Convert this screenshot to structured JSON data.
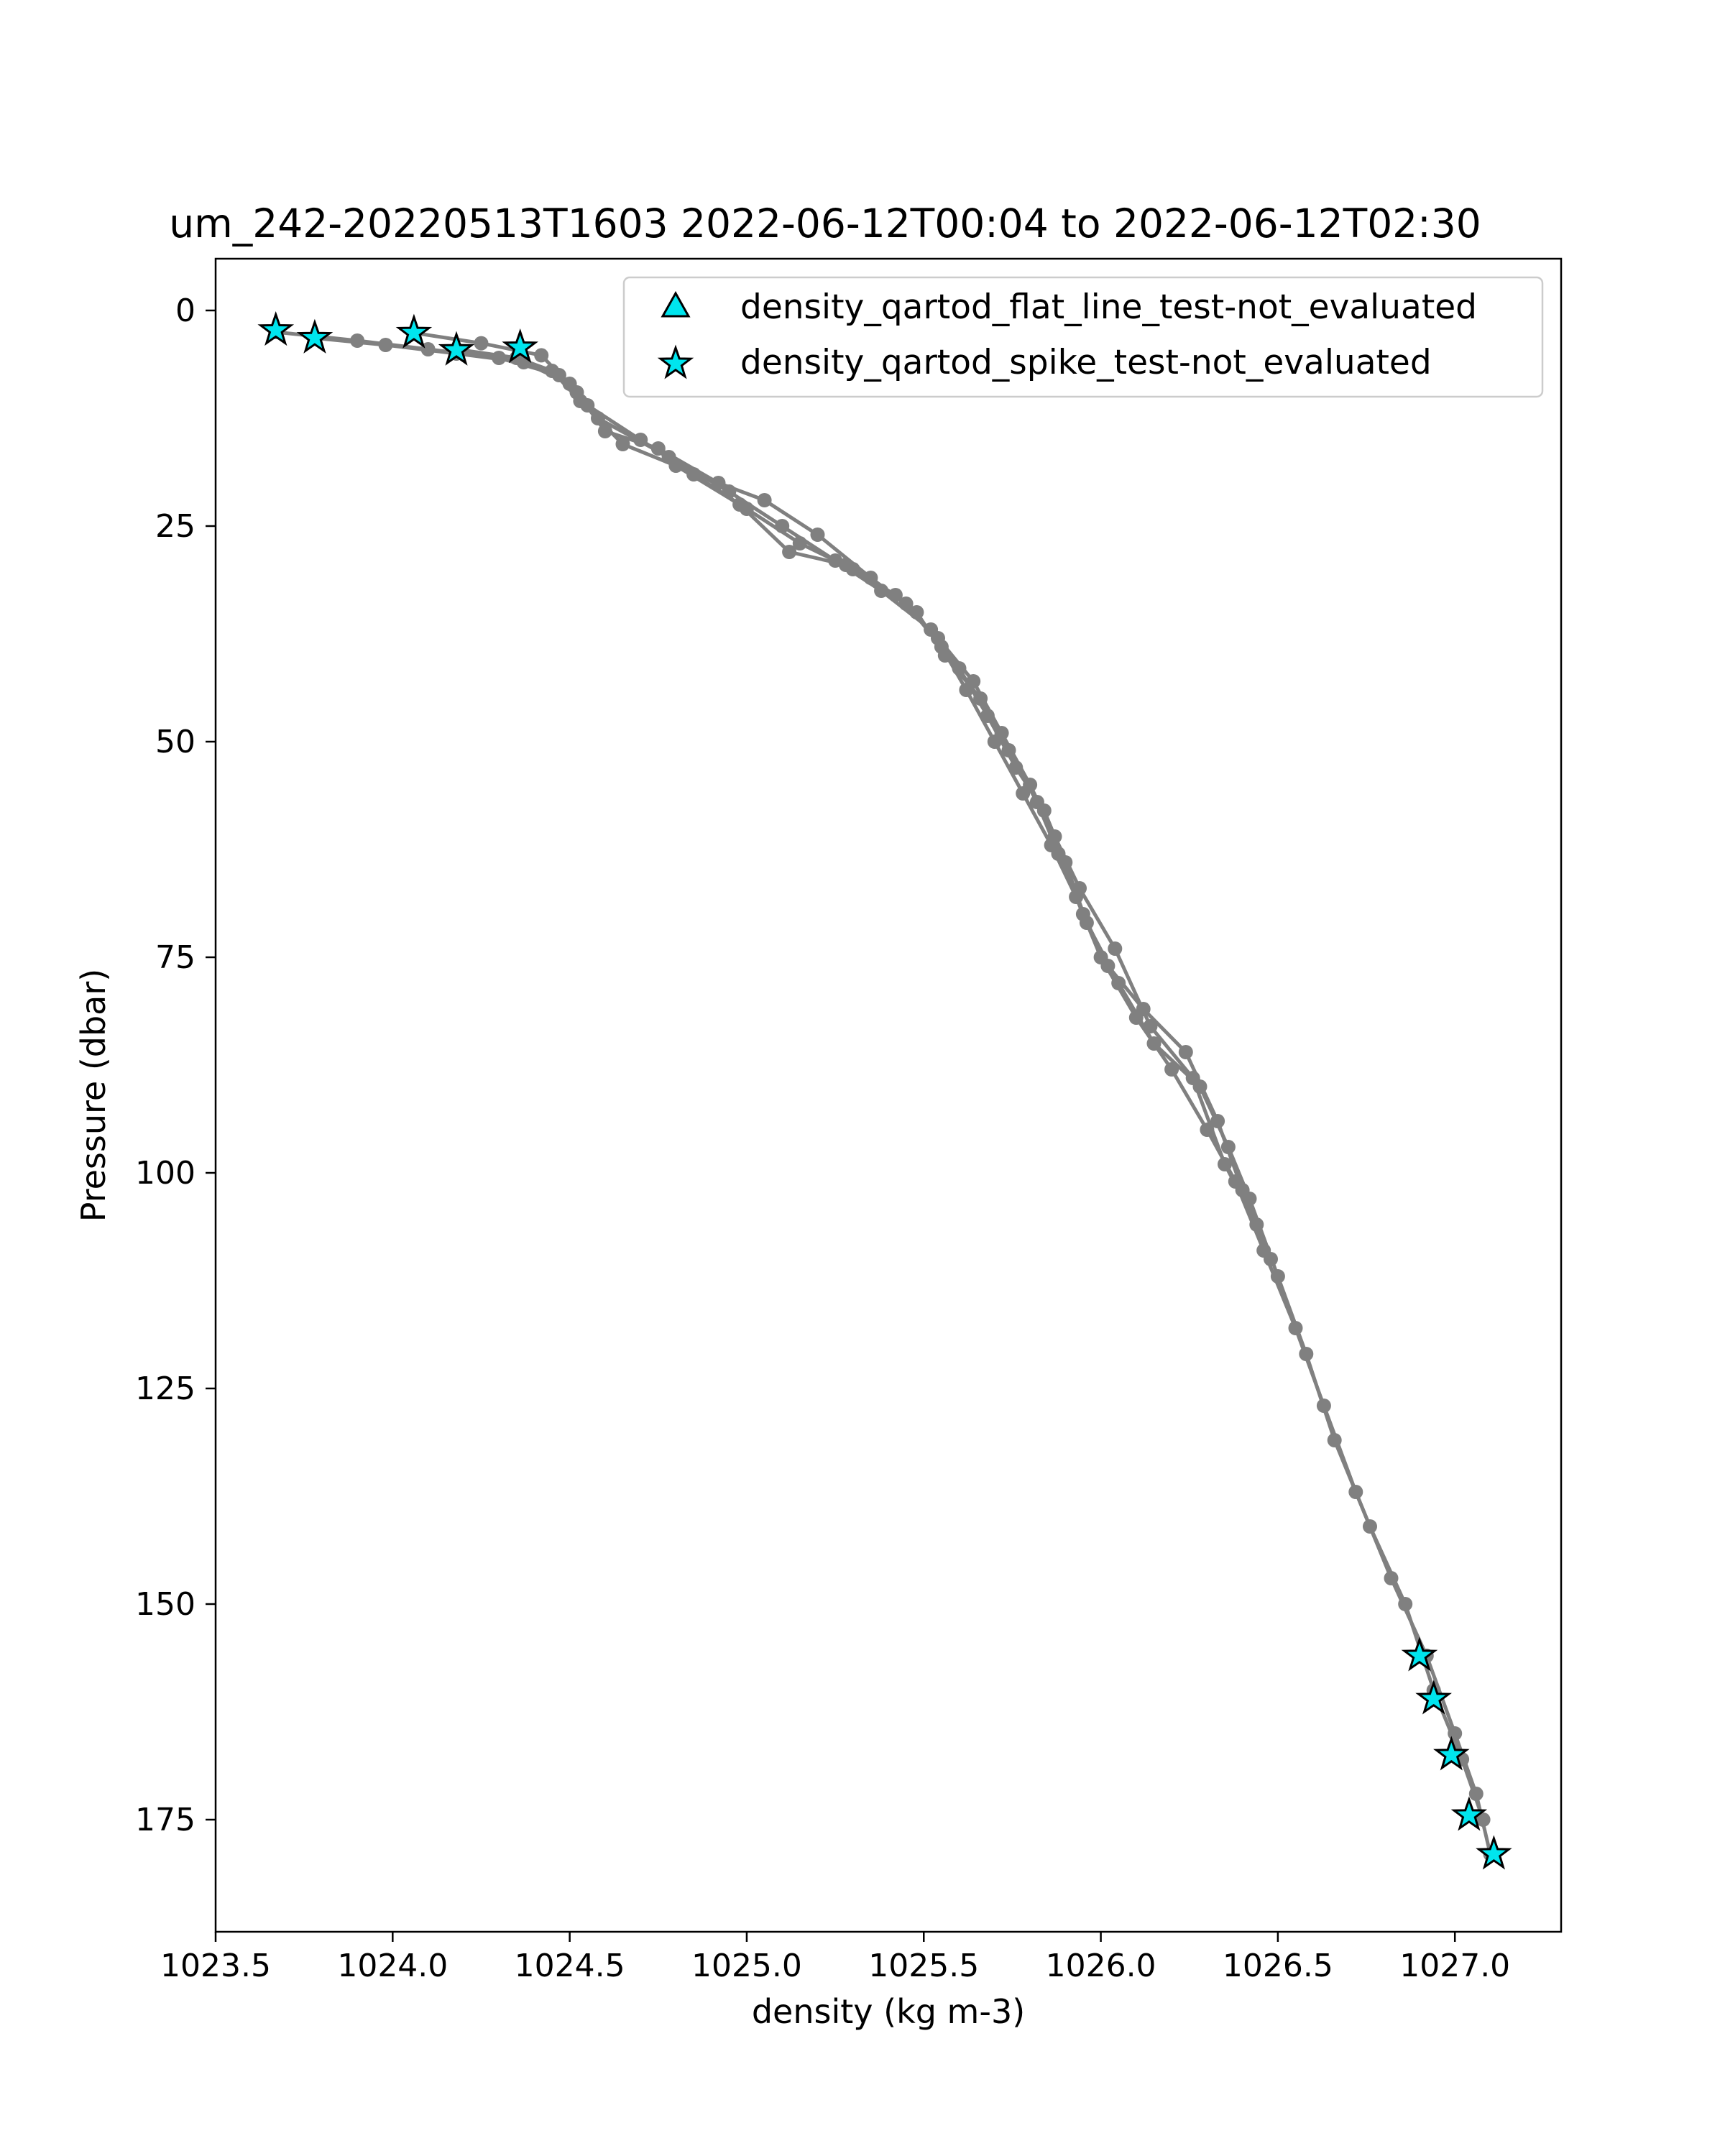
{
  "chart_data": {
    "type": "scatter",
    "title": "um_242-20220513T1603 2022-06-12T00:04 to 2022-06-12T02:30",
    "xlabel": "density (kg m-3)",
    "ylabel": "Pressure (dbar)",
    "xlim": [
      1023.5,
      1027.3
    ],
    "ylim": [
      188,
      -6
    ],
    "y_inverted": true,
    "x_ticks": [
      "1023.5",
      "1024.0",
      "1024.5",
      "1025.0",
      "1025.5",
      "1026.0",
      "1026.5",
      "1027.0"
    ],
    "x_tick_values": [
      1023.5,
      1024.0,
      1024.5,
      1025.0,
      1025.5,
      1026.0,
      1026.5,
      1027.0
    ],
    "y_ticks": [
      "0",
      "25",
      "50",
      "75",
      "100",
      "125",
      "150",
      "175"
    ],
    "y_tick_values": [
      0,
      25,
      50,
      75,
      100,
      125,
      150,
      175
    ],
    "grid": false,
    "legend_position": "upper-right",
    "colors": {
      "profile": "#808080",
      "marker_fill": "#00e5ee",
      "marker_edge": "#000000"
    },
    "series": [
      {
        "style": "line-with-dots",
        "x": [
          1023.67,
          1023.9,
          1024.1,
          1024.3,
          1024.47,
          1024.55,
          1024.7,
          1024.85,
          1025.0,
          1025.15,
          1025.3,
          1025.45,
          1025.55,
          1025.62,
          1025.7,
          1025.78,
          1025.86,
          1025.93,
          1026.0,
          1026.1,
          1026.2,
          1026.3,
          1026.38,
          1026.46,
          1026.55,
          1026.63,
          1026.72,
          1026.82,
          1026.92,
          1027.0,
          1027.06,
          1027.1
        ],
        "y": [
          2.5,
          3.5,
          4.5,
          5.5,
          7.5,
          11,
          15,
          19,
          23,
          27,
          30,
          34,
          39,
          44,
          50,
          56,
          62,
          68,
          75,
          82,
          88,
          95,
          101,
          109,
          118,
          127,
          137,
          147,
          156,
          165,
          172,
          179
        ]
      },
      {
        "style": "line-with-dots",
        "x": [
          1023.78,
          1023.98,
          1024.18,
          1024.37,
          1024.5,
          1024.58,
          1024.78,
          1024.95,
          1025.1,
          1025.25,
          1025.38,
          1025.52,
          1025.6,
          1025.68,
          1025.76,
          1025.84,
          1025.9,
          1025.96,
          1026.05,
          1026.15,
          1026.28,
          1026.36,
          1026.42,
          1026.5,
          1026.58,
          1026.66,
          1026.76,
          1026.86,
          1026.94,
          1027.02,
          1027.08
        ],
        "y": [
          3.2,
          4.0,
          5.0,
          6.0,
          8.5,
          12.5,
          17,
          21,
          25,
          29,
          32.5,
          37,
          41.5,
          47,
          53,
          58,
          64,
          71,
          78,
          85,
          90,
          97,
          103,
          112,
          121,
          131,
          141,
          150,
          160,
          168,
          175
        ]
      },
      {
        "style": "line-with-dots",
        "x": [
          1024.06,
          1024.25,
          1024.42,
          1024.52,
          1024.6,
          1024.75,
          1024.92,
          1025.05,
          1025.2,
          1025.35,
          1025.48,
          1025.56,
          1025.66,
          1025.74,
          1025.82,
          1025.88,
          1025.95,
          1026.02,
          1026.12,
          1026.24,
          1026.33,
          1026.4,
          1026.48
        ],
        "y": [
          2.6,
          3.8,
          5.2,
          9.5,
          14,
          16,
          20,
          22,
          26,
          31,
          35,
          40,
          45,
          51,
          57,
          63,
          70,
          76,
          81,
          86,
          94,
          102,
          110
        ]
      },
      {
        "style": "line-with-dots",
        "x": [
          1024.18,
          1024.35,
          1024.45,
          1024.53,
          1024.65,
          1024.8,
          1024.98,
          1025.12,
          1025.28,
          1025.42,
          1025.54,
          1025.64,
          1025.72,
          1025.8,
          1025.87,
          1025.94,
          1026.04,
          1026.14,
          1026.26,
          1026.35,
          1026.44
        ],
        "y": [
          4.5,
          5.5,
          7,
          10.5,
          15.5,
          18,
          22.5,
          28,
          29.5,
          33,
          38,
          43,
          49,
          55,
          61,
          67,
          74,
          83,
          89,
          99,
          106
        ]
      }
    ],
    "markers": [
      {
        "name": "density_qartod_flat_line_test-not_evaluated",
        "marker": "triangle",
        "x": [],
        "y": []
      },
      {
        "name": "density_qartod_spike_test-not_evaluated",
        "marker": "star",
        "x": [
          1023.67,
          1023.78,
          1024.06,
          1024.18,
          1024.36,
          1026.9,
          1026.94,
          1026.99,
          1027.04,
          1027.11
        ],
        "y": [
          2.3,
          3.2,
          2.6,
          4.6,
          4.3,
          156,
          161,
          167.5,
          174.5,
          179
        ]
      }
    ]
  }
}
